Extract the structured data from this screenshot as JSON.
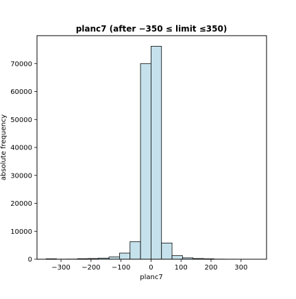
{
  "chart_data": {
    "type": "bar",
    "title": "planc7 (after −350 ≤ limit ≤350)",
    "xlabel": "planc7",
    "ylabel": "absolute frequency",
    "xlim": [
      -380,
      385
    ],
    "ylim": [
      0,
      80000
    ],
    "x_ticks": [
      -300,
      -200,
      -100,
      0,
      100,
      200,
      300
    ],
    "x_tick_labels": [
      "−300",
      "−200",
      "−100",
      "0",
      "100",
      "200",
      "300"
    ],
    "y_ticks": [
      0,
      10000,
      20000,
      30000,
      40000,
      50000,
      60000,
      70000
    ],
    "y_tick_labels": [
      "0",
      "10000",
      "20000",
      "30000",
      "40000",
      "50000",
      "60000",
      "70000"
    ],
    "grid": false,
    "bins": [
      {
        "x0": -350,
        "x1": -315,
        "value": 150
      },
      {
        "x0": -315,
        "x1": -280,
        "value": 40
      },
      {
        "x0": -280,
        "x1": -245,
        "value": 60
      },
      {
        "x0": -245,
        "x1": -210,
        "value": 180
      },
      {
        "x0": -210,
        "x1": -175,
        "value": 250
      },
      {
        "x0": -175,
        "x1": -140,
        "value": 400
      },
      {
        "x0": -140,
        "x1": -105,
        "value": 800
      },
      {
        "x0": -105,
        "x1": -70,
        "value": 2200
      },
      {
        "x0": -70,
        "x1": -35,
        "value": 6300
      },
      {
        "x0": -35,
        "x1": 0,
        "value": 70000
      },
      {
        "x0": 0,
        "x1": 35,
        "value": 76200
      },
      {
        "x0": 35,
        "x1": 70,
        "value": 5800
      },
      {
        "x0": 70,
        "x1": 105,
        "value": 1300
      },
      {
        "x0": 105,
        "x1": 140,
        "value": 500
      },
      {
        "x0": 140,
        "x1": 175,
        "value": 250
      },
      {
        "x0": 175,
        "x1": 210,
        "value": 150
      },
      {
        "x0": 210,
        "x1": 245,
        "value": 50
      },
      {
        "x0": 245,
        "x1": 280,
        "value": 30
      },
      {
        "x0": 280,
        "x1": 315,
        "value": 20
      },
      {
        "x0": 315,
        "x1": 350,
        "value": 20
      }
    ],
    "colors": {
      "bar_fill": "#c5e2ec",
      "bar_edge": "#000000",
      "axis": "#000000"
    }
  }
}
